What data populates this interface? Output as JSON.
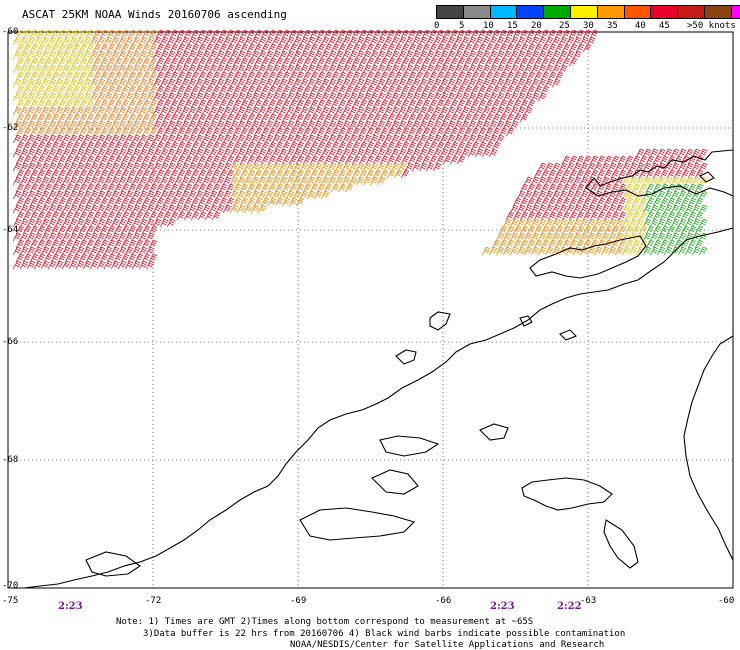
{
  "title": "ASCAT 25KM NOAA Winds 20160706 ascending",
  "scale": {
    "colors": [
      "#444444",
      "#8a8a8a",
      "#00b8ff",
      "#0044ff",
      "#00aa00",
      "#ffee00",
      "#ff9900",
      "#ff5500",
      "#e8002a",
      "#c41a1a",
      "#8b4513",
      "#ff00ff",
      "#cc00cc",
      "#8800cc",
      "#5a0090"
    ],
    "labels": [
      "0",
      "5",
      "10",
      "15",
      "20",
      "25",
      "30",
      "35",
      "40",
      "45",
      ">50 knots"
    ]
  },
  "lat_labels": [
    "-60",
    "-62",
    "-64",
    "-66",
    "-68",
    "-70"
  ],
  "lon_labels": [
    "-75",
    "-72",
    "-69",
    "-66",
    "-63",
    "-60"
  ],
  "times": [
    "2:23",
    "2:23",
    "2:22"
  ],
  "notes": [
    "Note: 1) Times are GMT 2)Times along bottom correspond to measurement at ~65S",
    "3)Data buffer is 22 hrs from 20160706 4) Black wind barbs indicate possible contamination",
    "NOAA/NESDIS/Center for Satellite Applications and Research"
  ]
}
